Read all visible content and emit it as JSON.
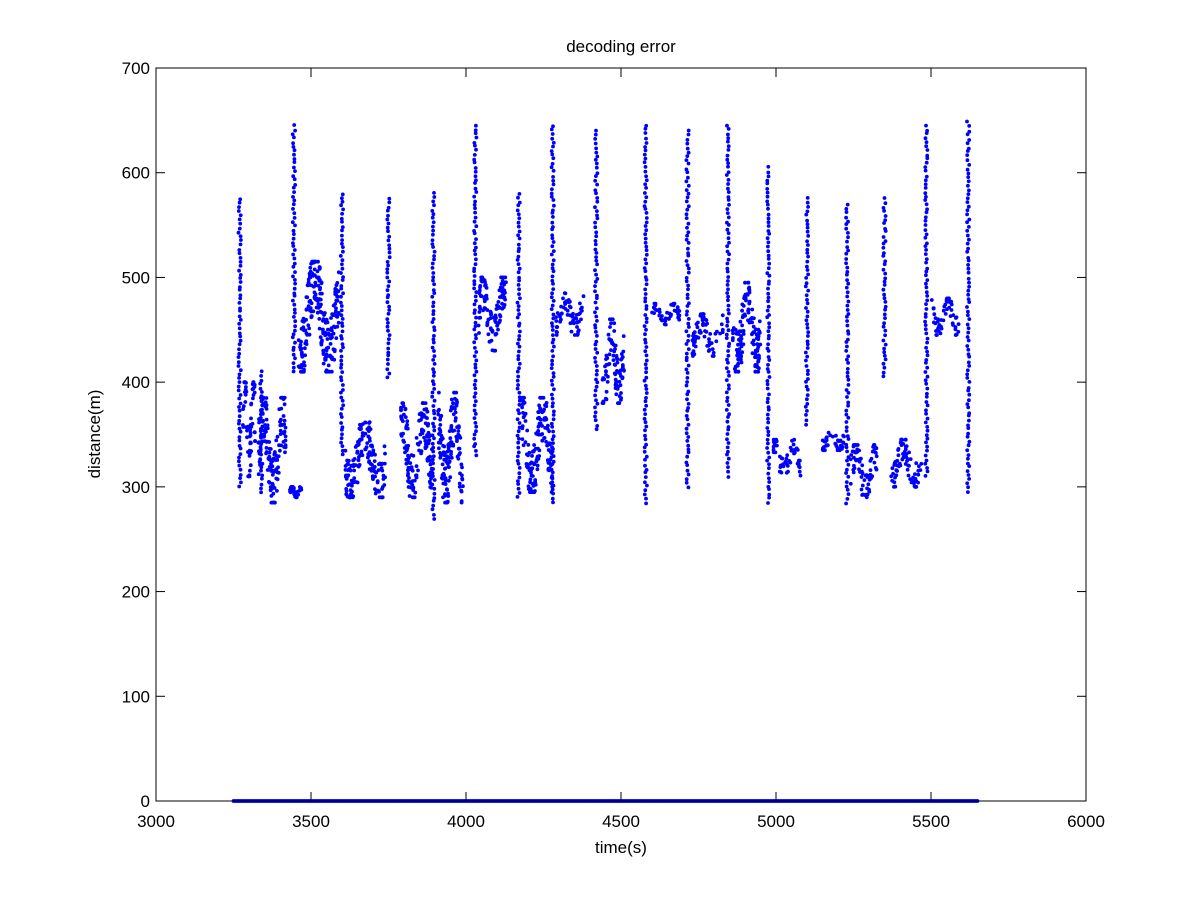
{
  "chart_data": {
    "type": "scatter",
    "title": "decoding error",
    "xlabel": "time(s)",
    "ylabel": "distance(m)",
    "xlim": [
      3000,
      6000
    ],
    "ylim": [
      0,
      700
    ],
    "xticks": [
      3000,
      3500,
      4000,
      4500,
      5000,
      5500,
      6000
    ],
    "yticks": [
      0,
      100,
      200,
      300,
      400,
      500,
      600,
      700
    ],
    "xtick_labels": [
      "3000",
      "3500",
      "4000",
      "4500",
      "5000",
      "5500",
      "6000"
    ],
    "ytick_labels": [
      "0",
      "100",
      "200",
      "300",
      "400",
      "500",
      "600",
      "700"
    ],
    "grid": false,
    "legend": "none",
    "marker_color": "#0000ff",
    "series": [
      {
        "baseline_zero": {
          "x_range": [
            3250,
            5650
          ],
          "y": 0
        },
        "vertical_sweeps": [
          {
            "x": 3270,
            "y": [
              300,
              575
            ]
          },
          {
            "x": 3340,
            "y": [
              295,
              410
            ]
          },
          {
            "x": 3445,
            "y": [
              410,
              645
            ]
          },
          {
            "x": 3600,
            "y": [
              330,
              580
            ]
          },
          {
            "x": 3750,
            "y": [
              405,
              575
            ]
          },
          {
            "x": 3895,
            "y": [
              270,
              580
            ]
          },
          {
            "x": 4030,
            "y": [
              330,
              645
            ]
          },
          {
            "x": 4170,
            "y": [
              290,
              580
            ]
          },
          {
            "x": 4280,
            "y": [
              285,
              645
            ]
          },
          {
            "x": 4420,
            "y": [
              355,
              640
            ]
          },
          {
            "x": 4580,
            "y": [
              285,
              645
            ]
          },
          {
            "x": 4715,
            "y": [
              300,
              640
            ]
          },
          {
            "x": 4845,
            "y": [
              310,
              645
            ]
          },
          {
            "x": 4975,
            "y": [
              285,
              605
            ]
          },
          {
            "x": 5100,
            "y": [
              360,
              575
            ]
          },
          {
            "x": 5230,
            "y": [
              285,
              570
            ]
          },
          {
            "x": 5350,
            "y": [
              405,
              575
            ]
          },
          {
            "x": 5485,
            "y": [
              310,
              645
            ]
          },
          {
            "x": 5620,
            "y": [
              295,
              648
            ]
          }
        ],
        "clusters": [
          {
            "x": [
              3280,
              3320
            ],
            "y": [
              310,
              400
            ]
          },
          {
            "x": [
              3330,
              3420
            ],
            "y": [
              285,
              385
            ]
          },
          {
            "x": [
              3430,
              3470
            ],
            "y": [
              290,
              300
            ]
          },
          {
            "x": [
              3460,
              3590
            ],
            "y": [
              410,
              515
            ]
          },
          {
            "x": [
              3610,
              3740
            ],
            "y": [
              290,
              365
            ]
          },
          {
            "x": [
              3790,
              3890
            ],
            "y": [
              290,
              380
            ]
          },
          {
            "x": [
              3910,
              3990
            ],
            "y": [
              285,
              390
            ]
          },
          {
            "x": [
              4040,
              4130
            ],
            "y": [
              430,
              500
            ]
          },
          {
            "x": [
              4180,
              4280
            ],
            "y": [
              295,
              385
            ]
          },
          {
            "x": [
              4290,
              4380
            ],
            "y": [
              445,
              485
            ]
          },
          {
            "x": [
              4440,
              4510
            ],
            "y": [
              380,
              460
            ]
          },
          {
            "x": [
              4600,
              4690
            ],
            "y": [
              455,
              475
            ]
          },
          {
            "x": [
              4730,
              4830
            ],
            "y": [
              425,
              465
            ]
          },
          {
            "x": [
              4860,
              4950
            ],
            "y": [
              410,
              495
            ]
          },
          {
            "x": [
              4990,
              5080
            ],
            "y": [
              310,
              345
            ]
          },
          {
            "x": [
              5150,
              5220
            ],
            "y": [
              335,
              355
            ]
          },
          {
            "x": [
              5240,
              5330
            ],
            "y": [
              290,
              340
            ]
          },
          {
            "x": [
              5370,
              5470
            ],
            "y": [
              300,
              345
            ]
          },
          {
            "x": [
              5500,
              5590
            ],
            "y": [
              445,
              480
            ]
          }
        ]
      }
    ]
  }
}
